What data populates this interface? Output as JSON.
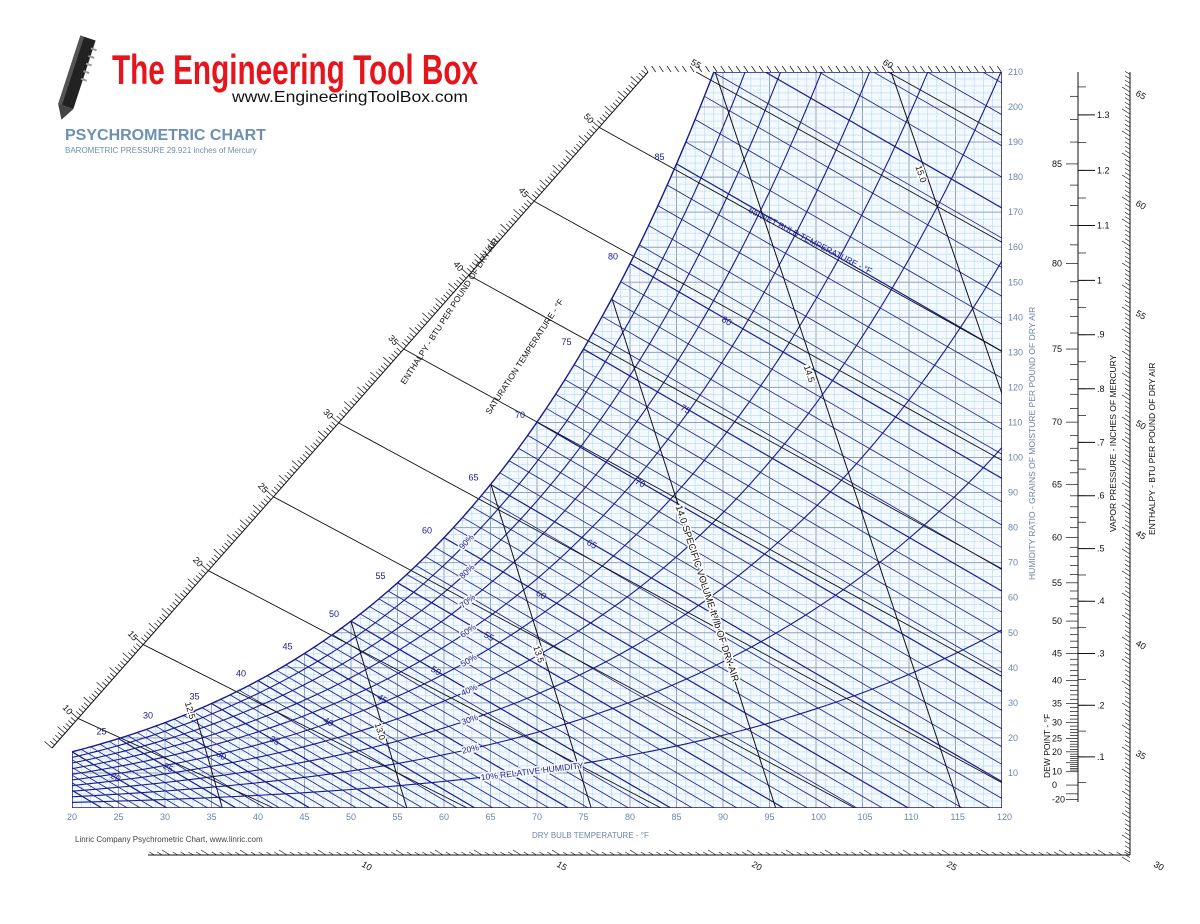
{
  "header": {
    "logo_text": "The Engineering Tool Box",
    "logo_url": "www.EngineeringToolBox.com",
    "title": "PSYCHROMETRIC CHART",
    "subtitle": "BAROMETRIC PRESSURE 29.921 inches of Mercury"
  },
  "footer": {
    "credit": "Linric Company Psychrometric Chart, www.linric.com"
  },
  "chart_data": {
    "type": "line",
    "xlabel": "DRY BULB TEMPERATURE - °F",
    "ylabel": "HUMIDITY RATIO - GRAINS OF MOISTURE PER POUND OF DRY AIR",
    "xlim": [
      20,
      120
    ],
    "ylim": [
      0,
      210
    ],
    "x_ticks": [
      20,
      25,
      30,
      35,
      40,
      45,
      50,
      55,
      60,
      65,
      70,
      75,
      80,
      85,
      90,
      95,
      100,
      105,
      110,
      115,
      120
    ],
    "y_ticks": [
      10,
      20,
      30,
      40,
      50,
      60,
      70,
      80,
      90,
      100,
      110,
      120,
      130,
      140,
      150,
      160,
      170,
      180,
      190,
      200,
      210
    ],
    "grid": true,
    "barometric_pressure_inHg": 29.921,
    "relative_humidity": {
      "values_pct": [
        10,
        20,
        30,
        40,
        50,
        60,
        70,
        80,
        90
      ],
      "labels": [
        "10% RELATIVE HUMIDITY",
        "20%",
        "30%",
        "40%",
        "50%",
        "60%",
        "70%",
        "80%",
        "90%"
      ]
    },
    "saturation": {
      "label": "SATURATION TEMPERATURE - °F",
      "ticks": [
        25,
        30,
        35,
        40,
        45,
        50,
        55,
        60,
        65,
        70,
        75,
        80,
        85
      ]
    },
    "wet_bulb": {
      "label": "65 WET BULB TEMPERATURE - °F",
      "interior_labels": [
        20,
        25,
        30,
        35,
        40,
        45,
        50,
        55,
        60,
        65,
        70,
        75,
        80
      ]
    },
    "specific_volume": {
      "values": [
        12.5,
        13.0,
        13.5,
        14.0,
        14.5,
        15.0
      ],
      "labels": [
        "12.5",
        "13.0",
        "13.5",
        "",
        "14.5",
        "15.0"
      ],
      "title": "14.0 SPECIFIC VOLUME ft³/lb OF DRY AIR"
    },
    "enthalpy": {
      "label": "ENTHALPY - BTU PER POUND OF DRY AIR",
      "diagonal_ticks": [
        10,
        15,
        20,
        25,
        30,
        35,
        40,
        45,
        50
      ],
      "top_ticks": [
        55,
        60
      ],
      "bottom_ticks": [
        10,
        15,
        20,
        25,
        30
      ],
      "right_ticks": [
        35,
        40,
        45,
        50,
        55,
        60,
        65
      ],
      "lines": [
        10,
        15,
        20,
        25,
        30,
        35,
        40,
        45,
        50,
        55,
        60
      ]
    },
    "dew_point": {
      "label": "DEW POINT - °F",
      "ticks": [
        85,
        80,
        75,
        70,
        65,
        60,
        55,
        50,
        45,
        40,
        35,
        30,
        25,
        20,
        10,
        0,
        -20
      ]
    },
    "vapor_pressure": {
      "label": "VAPOR PRESSURE - INCHES OF MERCURY",
      "ticks": [
        ".1",
        ".2",
        ".3",
        ".4",
        ".5",
        ".6",
        ".7",
        ".8",
        ".9",
        "1",
        "1.1",
        "1.2",
        "1.3"
      ]
    },
    "colors": {
      "grid_light": "#b4d8f4",
      "grid_major": "#8ea4bc",
      "curves": "#1a1a8c",
      "axis_text": "#6a86a8",
      "logo_red": "#e8141c",
      "title_blue": "#6d8fb3"
    }
  }
}
